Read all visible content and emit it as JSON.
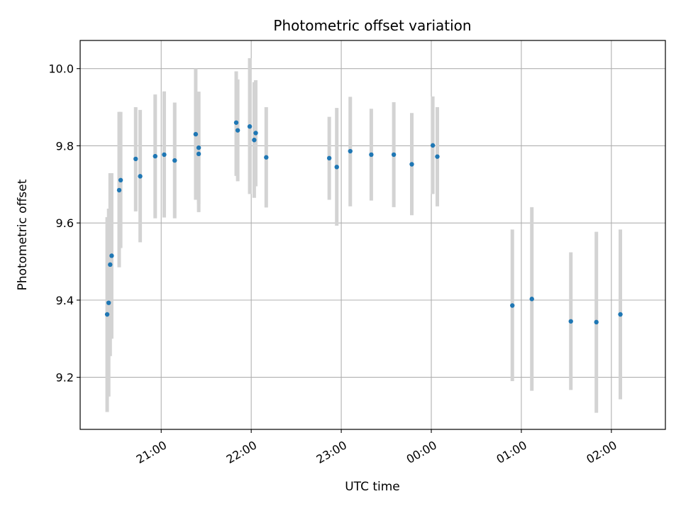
{
  "chart_data": {
    "type": "scatter",
    "title": "Photometric offset variation",
    "xlabel": "UTC time",
    "ylabel": "Photometric offset",
    "x_tick_labels": [
      "21:00",
      "22:00",
      "23:00",
      "00:00",
      "01:00",
      "02:00"
    ],
    "x_tick_values_hours": [
      21,
      22,
      23,
      24,
      25,
      26
    ],
    "y_ticks": [
      9.2,
      9.4,
      9.6,
      9.8,
      10.0
    ],
    "xlim_hours": [
      20.1,
      26.6
    ],
    "ylim": [
      9.065,
      10.073
    ],
    "grid": true,
    "colors": {
      "points": "#1f77b4",
      "errorbars": "#d3d3d3",
      "grid": "#b0b0b0"
    },
    "points": [
      {
        "t": "20:24",
        "y": 9.363,
        "lo": 9.11,
        "hi": 9.615
      },
      {
        "t": "20:25",
        "y": 9.393,
        "lo": 9.15,
        "hi": 9.637
      },
      {
        "t": "20:26",
        "y": 9.492,
        "lo": 9.255,
        "hi": 9.729
      },
      {
        "t": "20:27",
        "y": 9.515,
        "lo": 9.3,
        "hi": 9.729
      },
      {
        "t": "20:32",
        "y": 9.685,
        "lo": 9.485,
        "hi": 9.888
      },
      {
        "t": "20:33",
        "y": 9.711,
        "lo": 9.535,
        "hi": 9.888
      },
      {
        "t": "20:43",
        "y": 9.766,
        "lo": 9.63,
        "hi": 9.9
      },
      {
        "t": "20:46",
        "y": 9.721,
        "lo": 9.55,
        "hi": 9.893
      },
      {
        "t": "20:56",
        "y": 9.773,
        "lo": 9.612,
        "hi": 9.933
      },
      {
        "t": "21:02",
        "y": 9.777,
        "lo": 9.614,
        "hi": 9.941
      },
      {
        "t": "21:09",
        "y": 9.762,
        "lo": 9.612,
        "hi": 9.912
      },
      {
        "t": "21:23",
        "y": 9.83,
        "lo": 9.66,
        "hi": 10.0
      },
      {
        "t": "21:25",
        "y": 9.795,
        "lo": 9.65,
        "hi": 9.94
      },
      {
        "t": "21:25",
        "y": 9.779,
        "lo": 9.628,
        "hi": 9.94
      },
      {
        "t": "21:50",
        "y": 9.86,
        "lo": 9.722,
        "hi": 9.993
      },
      {
        "t": "21:51",
        "y": 9.84,
        "lo": 9.708,
        "hi": 9.972
      },
      {
        "t": "21:59",
        "y": 9.85,
        "lo": 9.675,
        "hi": 10.027
      },
      {
        "t": "22:02",
        "y": 9.815,
        "lo": 9.665,
        "hi": 9.965
      },
      {
        "t": "22:03",
        "y": 9.833,
        "lo": 9.695,
        "hi": 9.97
      },
      {
        "t": "22:10",
        "y": 9.77,
        "lo": 9.64,
        "hi": 9.9
      },
      {
        "t": "22:52",
        "y": 9.768,
        "lo": 9.66,
        "hi": 9.875
      },
      {
        "t": "22:57",
        "y": 9.745,
        "lo": 9.593,
        "hi": 9.898
      },
      {
        "t": "23:06",
        "y": 9.786,
        "lo": 9.643,
        "hi": 9.927
      },
      {
        "t": "23:20",
        "y": 9.777,
        "lo": 9.658,
        "hi": 9.896
      },
      {
        "t": "23:35",
        "y": 9.777,
        "lo": 9.641,
        "hi": 9.913
      },
      {
        "t": "23:47",
        "y": 9.752,
        "lo": 9.62,
        "hi": 9.885
      },
      {
        "t": "00:01",
        "y": 9.801,
        "lo": 9.675,
        "hi": 9.928
      },
      {
        "t": "00:04",
        "y": 9.772,
        "lo": 9.643,
        "hi": 9.9
      },
      {
        "t": "00:54",
        "y": 9.386,
        "lo": 9.19,
        "hi": 9.583
      },
      {
        "t": "01:07",
        "y": 9.403,
        "lo": 9.165,
        "hi": 9.641
      },
      {
        "t": "01:33",
        "y": 9.345,
        "lo": 9.167,
        "hi": 9.524
      },
      {
        "t": "01:50",
        "y": 9.343,
        "lo": 9.108,
        "hi": 9.577
      },
      {
        "t": "02:06",
        "y": 9.363,
        "lo": 9.143,
        "hi": 9.583
      }
    ]
  }
}
